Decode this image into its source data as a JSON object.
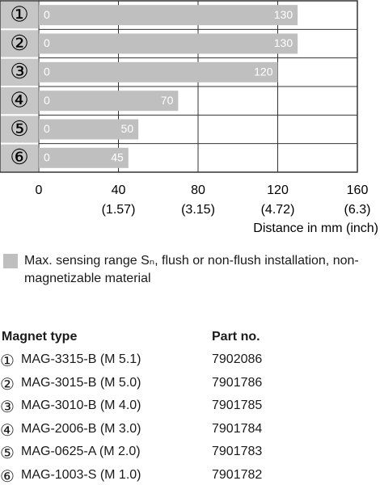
{
  "chart_data": {
    "type": "bar",
    "orientation": "horizontal",
    "categories": [
      "①",
      "②",
      "③",
      "④",
      "⑤",
      "⑥"
    ],
    "series": [
      {
        "name": "Max. sensing range Sₙ, flush or non-flush installation, non-magnetizable material",
        "color": "#bfbfbf",
        "values": [
          130,
          130,
          120,
          70,
          50,
          45
        ]
      }
    ],
    "xlim": [
      0,
      160
    ],
    "xticks": [
      0,
      40,
      80,
      120,
      160
    ],
    "xtick_secondary_labels": [
      null,
      "(1.57)",
      "(3.15)",
      "(4.72)",
      "(6.3)"
    ],
    "xlabel": "Distance in mm (inch)",
    "grid": true
  },
  "table": {
    "header": [
      "Magnet type",
      "Part no."
    ],
    "rows": [
      [
        "①",
        "MAG-3315-B (M 5.1)",
        "7902086"
      ],
      [
        "②",
        "MAG-3015-B (M 5.0)",
        "7901786"
      ],
      [
        "③",
        "MAG-3010-B (M 4.0)",
        "7901785"
      ],
      [
        "④",
        "MAG-2006-B (M 3.0)",
        "7901784"
      ],
      [
        "⑤",
        "MAG-0625-A (M 2.0)",
        "7901783"
      ],
      [
        "⑥",
        "MAG-1003-S (M 1.0)",
        "7901782"
      ]
    ]
  }
}
